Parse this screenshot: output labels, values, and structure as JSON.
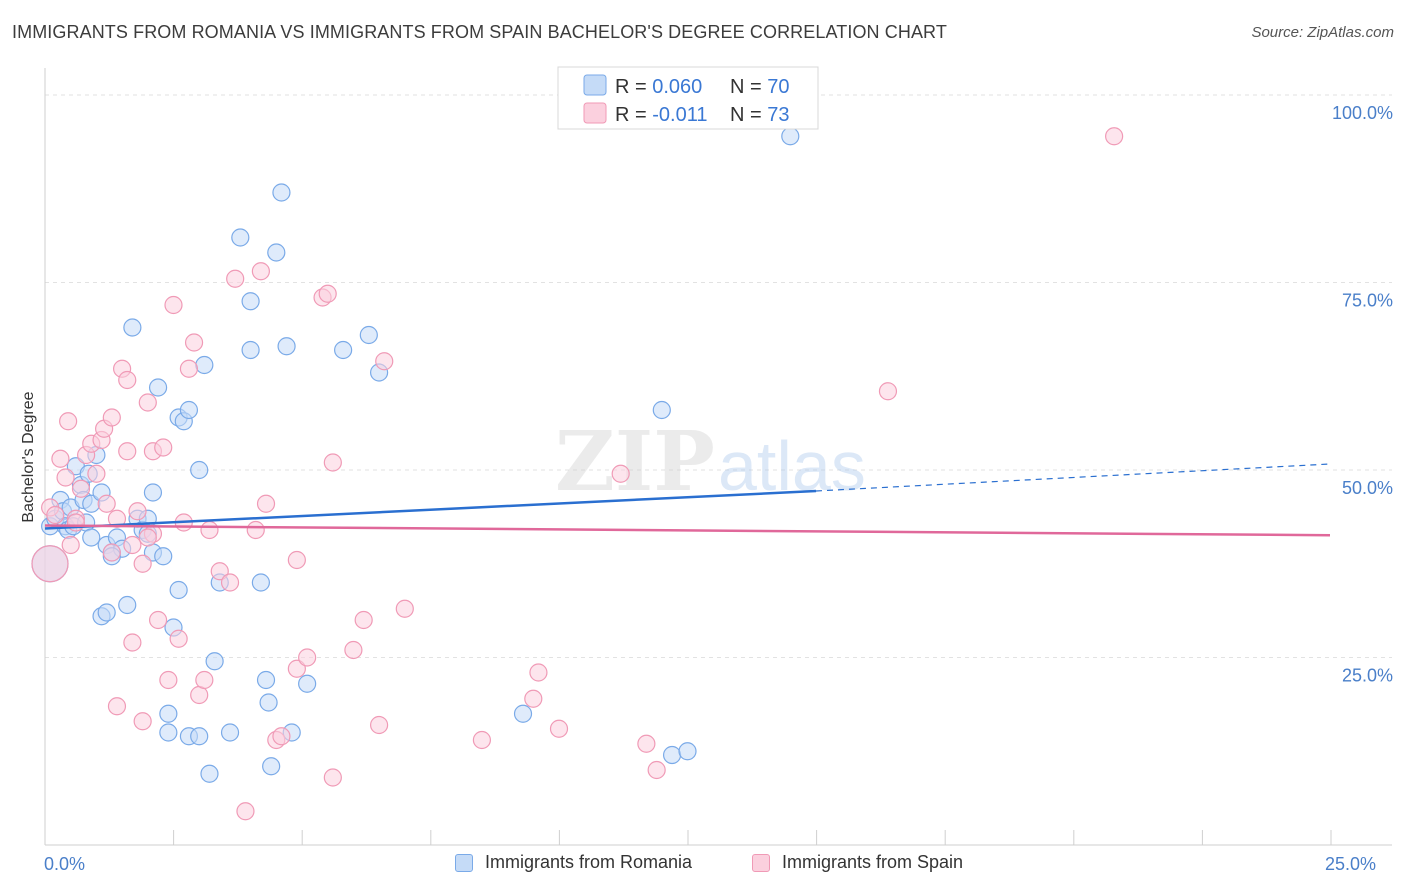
{
  "title": "IMMIGRANTS FROM ROMANIA VS IMMIGRANTS FROM SPAIN BACHELOR'S DEGREE CORRELATION CHART",
  "source": "Source: ZipAtlas.com",
  "watermark": "ZIPatlas",
  "colors": {
    "romania": "#7aaae8",
    "romania_fill": "#c5dbf7",
    "spain": "#f09ab6",
    "spain_fill": "#fbd0de",
    "romania_line": "#2a6fd0",
    "spain_line": "#e0689a",
    "tick": "#4a7fc9",
    "grid": "#e2e2e2"
  },
  "legend": {
    "rows": [
      {
        "r_label": "R = ",
        "r_value": "0.060",
        "n_label": "N = ",
        "n_value": "70"
      },
      {
        "r_label": "R = ",
        "r_value": "-0.011",
        "n_label": "N = ",
        "n_value": "73"
      }
    ]
  },
  "bottom_legend": [
    "Immigrants from Romania",
    "Immigrants from Spain"
  ],
  "chart_data": {
    "type": "scatter",
    "title": "IMMIGRANTS FROM ROMANIA VS IMMIGRANTS FROM SPAIN BACHELOR'S DEGREE CORRELATION CHART",
    "xlabel": "",
    "ylabel": "Bachelor's Degree",
    "xlim": [
      0,
      25
    ],
    "ylim": [
      0,
      102
    ],
    "x_tick_labels": [
      "0.0%",
      "25.0%"
    ],
    "y_ticks": [
      25,
      50,
      75,
      100
    ],
    "y_tick_labels": [
      "25.0%",
      "50.0%",
      "75.0%",
      "100.0%"
    ],
    "grid": true,
    "series": [
      {
        "name": "Immigrants from Romania",
        "R": 0.06,
        "N": 70,
        "trend": {
          "x0": 0,
          "y0": 42.2,
          "x1": 15,
          "y1": 47.2,
          "dashed_to": {
            "x": 25,
            "y": 50.8
          }
        },
        "points": [
          [
            0.1,
            42.5
          ],
          [
            0.2,
            43.5
          ],
          [
            0.3,
            46
          ],
          [
            0.35,
            44.5
          ],
          [
            0.4,
            42.5
          ],
          [
            0.45,
            42
          ],
          [
            0.5,
            45
          ],
          [
            0.55,
            42.5
          ],
          [
            0.6,
            50.5
          ],
          [
            0.7,
            48
          ],
          [
            0.75,
            46
          ],
          [
            0.8,
            43
          ],
          [
            0.85,
            49.5
          ],
          [
            0.9,
            45.5
          ],
          [
            1.0,
            52
          ],
          [
            1.1,
            47
          ],
          [
            1.2,
            40
          ],
          [
            1.3,
            39
          ],
          [
            1.4,
            41
          ],
          [
            1.5,
            39.5
          ],
          [
            1.6,
            32
          ],
          [
            1.1,
            30.5
          ],
          [
            1.2,
            31
          ],
          [
            1.7,
            69
          ],
          [
            1.8,
            43.5
          ],
          [
            1.9,
            42
          ],
          [
            2.0,
            43.5
          ],
          [
            2.1,
            39
          ],
          [
            2.1,
            47
          ],
          [
            2.2,
            61
          ],
          [
            2.3,
            38.5
          ],
          [
            2.4,
            17.5
          ],
          [
            2.4,
            15
          ],
          [
            2.5,
            29
          ],
          [
            2.6,
            57
          ],
          [
            2.6,
            34
          ],
          [
            2.7,
            56.5
          ],
          [
            2.8,
            14.5
          ],
          [
            2.8,
            58
          ],
          [
            3.0,
            50
          ],
          [
            3.0,
            14.5
          ],
          [
            3.1,
            64
          ],
          [
            3.2,
            9.5
          ],
          [
            3.3,
            24.5
          ],
          [
            3.4,
            35
          ],
          [
            3.6,
            15
          ],
          [
            3.8,
            81
          ],
          [
            4.0,
            72.5
          ],
          [
            4.0,
            66
          ],
          [
            4.2,
            35
          ],
          [
            4.3,
            22
          ],
          [
            4.35,
            19
          ],
          [
            4.4,
            10.5
          ],
          [
            4.5,
            79
          ],
          [
            4.6,
            87
          ],
          [
            4.7,
            66.5
          ],
          [
            4.8,
            15
          ],
          [
            5.1,
            21.5
          ],
          [
            5.8,
            66
          ],
          [
            6.3,
            68
          ],
          [
            6.5,
            63
          ],
          [
            9.3,
            17.5
          ],
          [
            12.0,
            58
          ],
          [
            12.2,
            12
          ],
          [
            12.5,
            12.5
          ],
          [
            14.5,
            94.5
          ],
          [
            0.0,
            37.5
          ],
          [
            0.9,
            41
          ],
          [
            1.3,
            38.5
          ],
          [
            2.0,
            41.5
          ]
        ]
      },
      {
        "name": "Immigrants from Spain",
        "R": -0.011,
        "N": 73,
        "trend": {
          "x0": 0,
          "y0": 42.6,
          "x1": 25,
          "y1": 41.3
        },
        "points": [
          [
            0.1,
            45
          ],
          [
            0.2,
            44
          ],
          [
            0.3,
            51.5
          ],
          [
            0.4,
            49
          ],
          [
            0.45,
            56.5
          ],
          [
            0.5,
            40
          ],
          [
            0.6,
            43.5
          ],
          [
            0.7,
            47.5
          ],
          [
            0.8,
            52
          ],
          [
            0.9,
            53.5
          ],
          [
            1.0,
            49.5
          ],
          [
            1.1,
            54
          ],
          [
            1.15,
            55.5
          ],
          [
            1.2,
            45.5
          ],
          [
            1.3,
            57
          ],
          [
            1.4,
            43.5
          ],
          [
            1.4,
            18.5
          ],
          [
            1.5,
            63.5
          ],
          [
            1.6,
            62
          ],
          [
            1.6,
            52.5
          ],
          [
            1.7,
            40
          ],
          [
            1.7,
            27
          ],
          [
            1.8,
            44.5
          ],
          [
            1.9,
            16.5
          ],
          [
            1.9,
            37.5
          ],
          [
            2.0,
            59
          ],
          [
            2.1,
            52.5
          ],
          [
            2.1,
            41.5
          ],
          [
            2.2,
            30
          ],
          [
            2.3,
            53
          ],
          [
            2.4,
            22
          ],
          [
            2.5,
            72
          ],
          [
            2.6,
            27.5
          ],
          [
            2.7,
            43
          ],
          [
            2.8,
            63.5
          ],
          [
            2.9,
            67
          ],
          [
            3.0,
            20
          ],
          [
            3.1,
            22
          ],
          [
            3.2,
            42
          ],
          [
            3.4,
            36.5
          ],
          [
            3.6,
            35
          ],
          [
            3.7,
            75.5
          ],
          [
            3.9,
            4.5
          ],
          [
            4.1,
            42
          ],
          [
            4.2,
            76.5
          ],
          [
            4.3,
            45.5
          ],
          [
            4.5,
            14
          ],
          [
            4.6,
            14.5
          ],
          [
            4.9,
            38
          ],
          [
            4.9,
            23.5
          ],
          [
            5.1,
            25
          ],
          [
            5.4,
            73
          ],
          [
            5.5,
            73.5
          ],
          [
            5.6,
            51
          ],
          [
            5.6,
            9
          ],
          [
            6.0,
            26
          ],
          [
            6.2,
            30
          ],
          [
            6.5,
            16
          ],
          [
            6.6,
            64.5
          ],
          [
            7.0,
            31.5
          ],
          [
            8.5,
            14
          ],
          [
            9.5,
            19.5
          ],
          [
            9.6,
            23
          ],
          [
            10.0,
            15.5
          ],
          [
            11.2,
            49.5
          ],
          [
            11.7,
            13.5
          ],
          [
            11.9,
            10
          ],
          [
            16.4,
            60.5
          ],
          [
            20.8,
            94.5
          ],
          [
            0.0,
            37.5
          ],
          [
            0.6,
            43
          ],
          [
            1.3,
            39
          ],
          [
            2.0,
            41
          ]
        ]
      }
    ]
  }
}
